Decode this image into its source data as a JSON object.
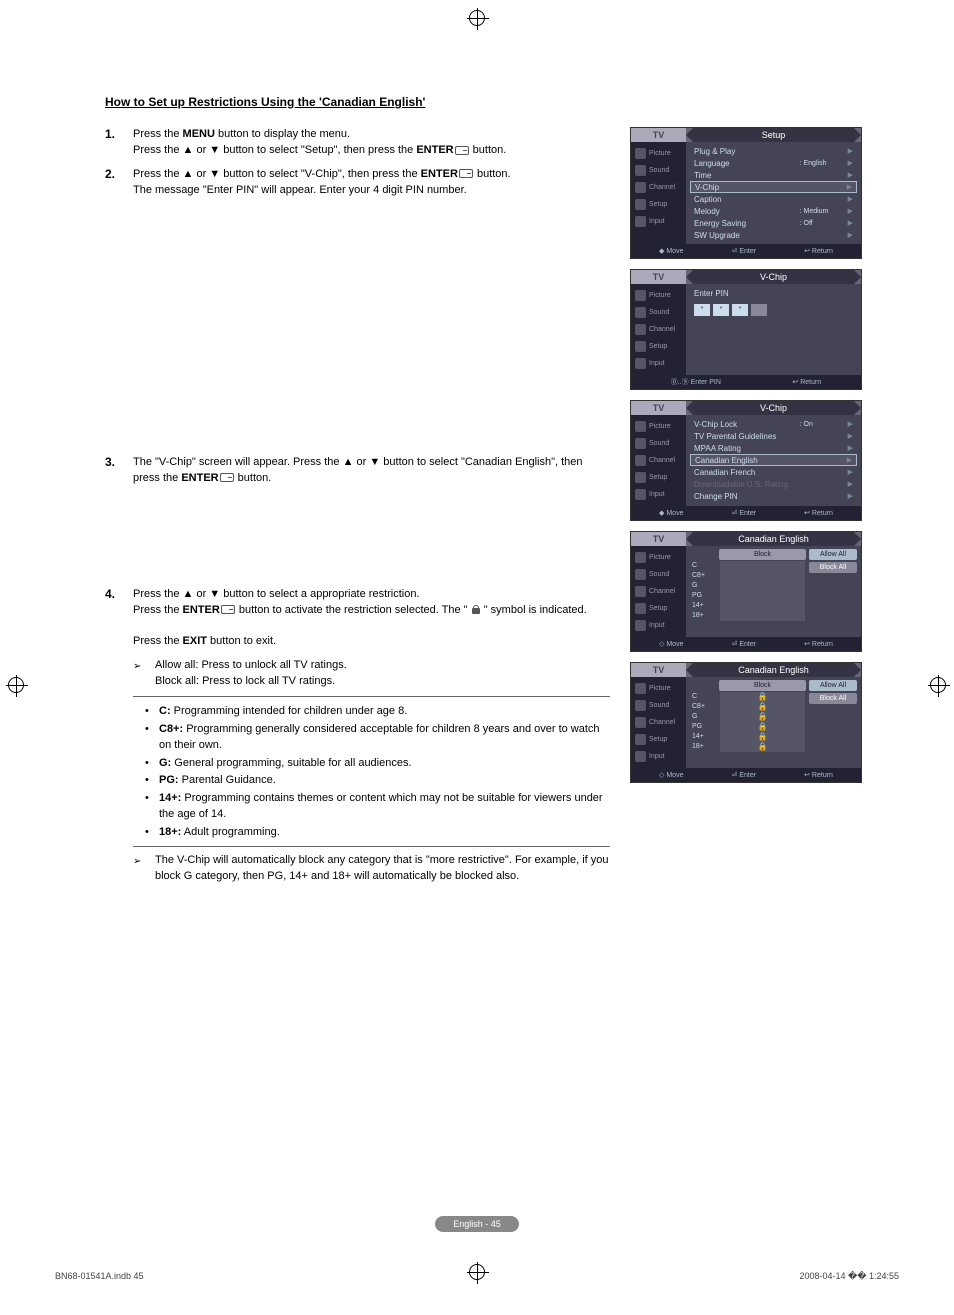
{
  "title": "How to Set up Restrictions Using the 'Canadian English'",
  "steps": {
    "s1": {
      "num": "1.",
      "a": "Press the ",
      "b": "MENU",
      "c": " button to display the menu.",
      "d": "Press the ▲ or ▼ button to select \"Setup\", then press the ",
      "e": "ENTER",
      "f": " button."
    },
    "s2": {
      "num": "2.",
      "a": "Press the ▲ or ▼ button to select \"V-Chip\", then press the ",
      "b": "ENTER",
      "c": " button.",
      "d": "The message \"Enter PIN\" will appear. Enter your 4 digit PIN number."
    },
    "s3": {
      "num": "3.",
      "a": "The \"V-Chip\" screen will appear. Press the ▲ or ▼ button to select \"Canadian English\", then press the ",
      "b": "ENTER",
      "c": " button."
    },
    "s4": {
      "num": "4.",
      "a": "Press the ▲ or ▼ button to select a appropriate restriction.",
      "b": "Press the ",
      "c": "ENTER",
      "d": " button to activate the restriction selected. The \" ",
      "e": " \" symbol is indicated.",
      "f": "Press the ",
      "g": "EXIT",
      "h": " button to exit."
    }
  },
  "notes": {
    "n1a": "Allow all: Press to unlock all TV ratings.",
    "n1b": "Block all: Press to lock all TV ratings.",
    "n2": "The V-Chip will automatically block any category that is \"more restrictive\". For example, if you block G category, then PG, 14+ and 18+ will automatically be blocked also."
  },
  "bullets": {
    "c": {
      "k": "C:",
      "v": " Programming intended for children under age 8."
    },
    "c8": {
      "k": "C8+:",
      "v": " Programming generally considered acceptable for children 8 years and over to watch on their own."
    },
    "g": {
      "k": "G:",
      "v": " General programming, suitable for all audiences."
    },
    "pg": {
      "k": "PG:",
      "v": " Parental Guidance."
    },
    "p14": {
      "k": "14+:",
      "v": " Programming contains themes or content which may not be suitable for viewers under the age of 14."
    },
    "p18": {
      "k": "18+:",
      "v": " Adult programming."
    }
  },
  "tv": {
    "side": [
      "Picture",
      "Sound",
      "Channel",
      "Setup",
      "Input"
    ],
    "b1": {
      "title": "Setup",
      "rows": [
        {
          "l": "Plug & Play",
          "v": ""
        },
        {
          "l": "Language",
          "v": ": English"
        },
        {
          "l": "Time",
          "v": ""
        },
        {
          "l": "V-Chip",
          "v": "",
          "hl": true
        },
        {
          "l": "Caption",
          "v": ""
        },
        {
          "l": "Melody",
          "v": ": Medium"
        },
        {
          "l": "Energy Saving",
          "v": ": Off"
        },
        {
          "l": "SW Upgrade",
          "v": ""
        }
      ],
      "foot": [
        "◆ Move",
        "⏎ Enter",
        "↩ Return"
      ]
    },
    "b2": {
      "title": "V-Chip",
      "label": "Enter PIN",
      "pins": [
        "*",
        "*",
        "*",
        ""
      ],
      "foot": [
        "⓪..⑨ Enter PIN",
        "↩ Return"
      ]
    },
    "b3": {
      "title": "V-Chip",
      "rows": [
        {
          "l": "V-Chip Lock",
          "v": ": On"
        },
        {
          "l": "TV Parental Guidelines",
          "v": ""
        },
        {
          "l": "MPAA Rating",
          "v": ""
        },
        {
          "l": "Canadian English",
          "v": "",
          "hl": true
        },
        {
          "l": "Canadian French",
          "v": ""
        },
        {
          "l": "Downloadable U.S. Rating",
          "v": "",
          "dis": true
        },
        {
          "l": "Change PIN",
          "v": ""
        }
      ],
      "foot": [
        "◆ Move",
        "⏎ Enter",
        "↩ Return"
      ]
    },
    "b4": {
      "title": "Canadian English",
      "ratings": [
        "C",
        "C8+",
        "G",
        "PG",
        "14+",
        "18+"
      ],
      "block": "Block",
      "allow": "Allow All",
      "blockall": "Block All",
      "foot": [
        "◇ Move",
        "⏎ Enter",
        "↩ Return"
      ]
    },
    "b5": {
      "title": "Canadian English",
      "ratings": [
        "C",
        "C8+",
        "G",
        "PG",
        "14+",
        "18+"
      ],
      "block": "Block",
      "allow": "Allow All",
      "blockall": "Block All",
      "foot": [
        "◇ Move",
        "⏎ Enter",
        "↩ Return"
      ]
    }
  },
  "pagefoot": "English - 45",
  "docfoot": {
    "l": "BN68-01541A.indb   45",
    "r": "2008-04-14   �� 1:24:55"
  },
  "tvlabel": "TV"
}
